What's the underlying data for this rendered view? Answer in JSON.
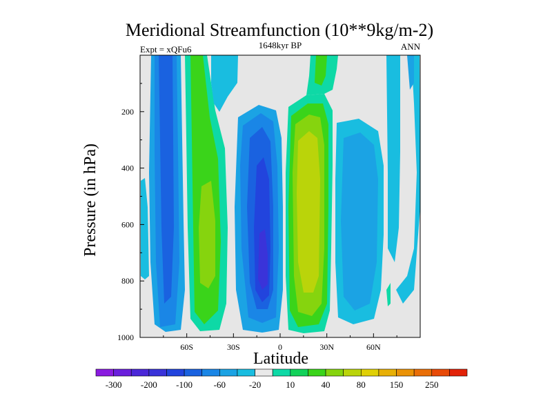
{
  "chart_data": {
    "type": "contour",
    "title": "Meridional Streamfunction (10**9kg/m-2)",
    "left_string": "Expt = xQFu6",
    "center_string": "1648kyr BP",
    "right_string": "ANN",
    "xlabel": "Latitude",
    "ylabel": "Pressure (in hPa)",
    "xlim": [
      -90,
      90
    ],
    "ylim": [
      1000,
      0
    ],
    "x_ticks": [
      {
        "value": -60,
        "label": "60S"
      },
      {
        "value": -30,
        "label": "30S"
      },
      {
        "value": 0,
        "label": "0"
      },
      {
        "value": 30,
        "label": "30N"
      },
      {
        "value": 60,
        "label": "60N"
      }
    ],
    "y_ticks": [
      {
        "value": 200,
        "label": "200"
      },
      {
        "value": 400,
        "label": "400"
      },
      {
        "value": 600,
        "label": "600"
      },
      {
        "value": 800,
        "label": "800"
      },
      {
        "value": 1000,
        "label": "1000"
      }
    ],
    "colorbar": {
      "colors": [
        "#8a1be0",
        "#6a1edc",
        "#4b28d8",
        "#3a33d9",
        "#2244dd",
        "#1a62e0",
        "#1a86e6",
        "#1ba3e4",
        "#19bde0",
        "#e9e9e9",
        "#0ed9a6",
        "#12d25a",
        "#3ad41a",
        "#86d40e",
        "#bad40a",
        "#e0d006",
        "#e8b006",
        "#ea9206",
        "#e96e07",
        "#e84a08",
        "#e22208"
      ],
      "labels": [
        "-300",
        "-200",
        "-100",
        "-60",
        "-20",
        "10",
        "40",
        "80",
        "150",
        "250"
      ]
    },
    "background_color": "#e6e6e6",
    "cells": [
      {
        "name": "cell-far-south",
        "lat": [
          -79,
          -67
        ],
        "p_top": 0,
        "p_bot": 980,
        "value": -60,
        "core_lat": -73,
        "core_p": 600,
        "core_value": -100
      },
      {
        "name": "cell-south-positive",
        "lat": [
          -60,
          -42
        ],
        "p_top": 0,
        "p_bot": 970,
        "value": 40,
        "core_lat": -52,
        "core_p": 650,
        "core_value": 60
      },
      {
        "name": "cell-south-hadley",
        "lat": [
          -30,
          -2
        ],
        "p_top": 160,
        "p_bot": 990,
        "value": -60,
        "core_lat": -12,
        "core_p": 720,
        "core_value": -200
      },
      {
        "name": "cell-north-hadley",
        "lat": [
          4,
          28
        ],
        "p_top": 140,
        "p_bot": 985,
        "value": 60,
        "core_lat": 12,
        "core_p": 600,
        "core_value": 80
      },
      {
        "name": "cell-north-ferrel",
        "lat": [
          35,
          60
        ],
        "p_top": 260,
        "p_bot": 950,
        "value": -20,
        "core_lat": 48,
        "core_p": 550,
        "core_value": -60
      },
      {
        "name": "cell-polar-north",
        "lat": [
          71,
          86
        ],
        "p_top": 0,
        "p_bot": 900,
        "value": -20,
        "core_lat": 79,
        "core_p": 400,
        "core_value": -20
      }
    ]
  }
}
